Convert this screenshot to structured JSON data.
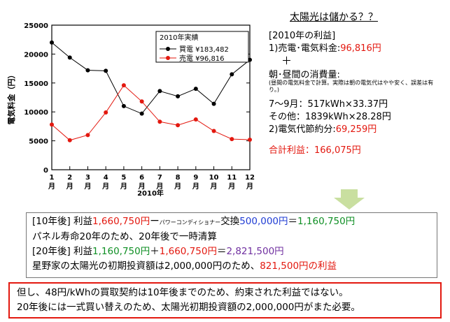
{
  "chart_data": {
    "type": "line",
    "categories": [
      "1月",
      "2月",
      "3月",
      "4月",
      "5月",
      "6月",
      "7月",
      "8月",
      "9月",
      "10月",
      "11月",
      "12月"
    ],
    "xticks": [
      {
        "num": "1",
        "unit": "月"
      },
      {
        "num": "2",
        "unit": "月"
      },
      {
        "num": "3",
        "unit": "月"
      },
      {
        "num": "4",
        "unit": "月"
      },
      {
        "num": "5",
        "unit": "月"
      },
      {
        "num": "6",
        "unit": "月"
      },
      {
        "num": "7",
        "unit": "月"
      },
      {
        "num": "8",
        "unit": "月"
      },
      {
        "num": "9",
        "unit": "月"
      },
      {
        "num": "10",
        "unit": "月"
      },
      {
        "num": "11",
        "unit": "月"
      },
      {
        "num": "12",
        "unit": "月"
      }
    ],
    "series": [
      {
        "name": "買電 ¥183,482",
        "color": "#000000",
        "values": [
          22000,
          19400,
          17200,
          17100,
          11000,
          9700,
          13600,
          12700,
          14000,
          11400,
          16500,
          19000
        ]
      },
      {
        "name": "売電 ¥96,816",
        "color": "#e3180f",
        "values": [
          7800,
          5100,
          6000,
          9900,
          14600,
          11800,
          8300,
          7700,
          8700,
          6700,
          5300,
          5200
        ]
      }
    ],
    "legend_title": "2010年実績",
    "xlabel": "2010年",
    "ylabel": "電気料金（円）",
    "ylim": [
      0,
      25000
    ],
    "yticks": [
      0,
      5000,
      10000,
      15000,
      20000,
      25000
    ],
    "grid": false,
    "legend_position": "top-right"
  },
  "panel": {
    "title": "太陽光は儲かる？？",
    "year_profit": "[2010年の利益]",
    "item1_label": "1)売電･電気料金:",
    "item1_value": "96,816円",
    "plus": "＋",
    "consumption_label": "朝･昼間の消費量:",
    "consumption_note": "(昼間の電気料金で計算。実際は朝の電気代はやや安く、誤差は有り。)",
    "jul_sep": "7～9月：517kWh×33.37円",
    "others": "その他：1839kWh×28.28円",
    "item2_label": "2)電気代節約分:",
    "item2_value": "69,259円",
    "total": "合計利益：166,075円"
  },
  "middle": {
    "l1_a": "[10年後] 利益",
    "l1_b": "1,660,750円",
    "l1_c": "ー",
    "l1_d": "パワーコンディショナー",
    "l1_e": "交換",
    "l1_f": "500,000円",
    "l1_g": "＝",
    "l1_h": "1,160,750円",
    "l2": "パネル寿命20年のため、20年後で一時清算",
    "l3_a": "[20年後] 利益",
    "l3_b": "1,160,750円",
    "l3_c": "＋",
    "l3_d": "1,660,750円",
    "l3_e": "＝",
    "l3_f": "2,821,500円",
    "l4_a": "星野家の太陽光の初期投資額は2,000,000円のため、",
    "l4_b": "821,500円の利益"
  },
  "bottom": {
    "l1": "但し、48円/kWhの買取契約は10年後までのため、約束された利益ではない。",
    "l2": "20年後には一式買い替えのため、太陽光初期投資額の2,000,000円がまた必要。"
  }
}
